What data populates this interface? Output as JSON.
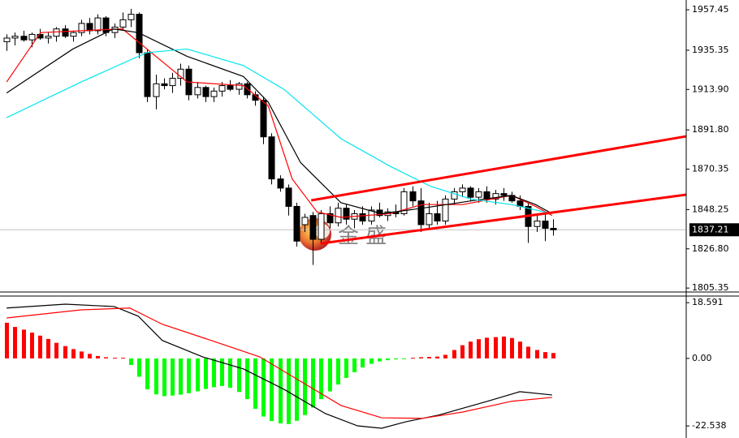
{
  "chart_data": [
    {
      "type": "candlestick",
      "xlim": [
        -0.8,
        82.1
      ],
      "ylim": [
        1803.2,
        1962.8
      ],
      "yticks": [
        1957.45,
        1935.35,
        {
          "value": 1913.9,
          "label": "1913.90"
        },
        {
          "value": 1891.8,
          "label": "1891.80"
        },
        1870.35,
        1848.25,
        {
          "value": 1826.8,
          "label": "1826.80"
        },
        1805.35
      ],
      "last_price": 1837.21,
      "watermark": "金 盛",
      "up_color": "#ffffff",
      "down_color": "#000000",
      "outline_color": "#000000",
      "ohlc": [
        [
          1940,
          1944,
          1935,
          1942
        ],
        [
          1942,
          1945,
          1938,
          1943
        ],
        [
          1943,
          1946,
          1940,
          1941
        ],
        [
          1941,
          1945,
          1937,
          1944
        ],
        [
          1944,
          1947,
          1941,
          1942
        ],
        [
          1942,
          1945,
          1939,
          1943
        ],
        [
          1943,
          1948,
          1940,
          1947
        ],
        [
          1947,
          1949,
          1942,
          1943
        ],
        [
          1943,
          1946,
          1940,
          1945
        ],
        [
          1945,
          1952,
          1943,
          1950
        ],
        [
          1950,
          1953,
          1944,
          1946
        ],
        [
          1946,
          1955,
          1944,
          1953
        ],
        [
          1953,
          1954,
          1943,
          1945
        ],
        [
          1945,
          1950,
          1942,
          1948
        ],
        [
          1948,
          1956,
          1946,
          1952
        ],
        [
          1952,
          1958,
          1948,
          1955
        ],
        [
          1955,
          1956,
          1931,
          1934
        ],
        [
          1934,
          1936,
          1907,
          1910
        ],
        [
          1910,
          1922,
          1903,
          1917
        ],
        [
          1917,
          1920,
          1914,
          1916
        ],
        [
          1916,
          1923,
          1912,
          1920
        ],
        [
          1920,
          1928,
          1916,
          1925
        ],
        [
          1925,
          1927,
          1908,
          1911
        ],
        [
          1911,
          1918,
          1909,
          1915
        ],
        [
          1915,
          1916,
          1907,
          1910
        ],
        [
          1910,
          1915,
          1907,
          1913
        ],
        [
          1913,
          1918,
          1910,
          1916
        ],
        [
          1916,
          1919,
          1913,
          1914
        ],
        [
          1914,
          1918,
          1911,
          1917
        ],
        [
          1917,
          1918,
          1909,
          1911
        ],
        [
          1911,
          1913,
          1905,
          1908
        ],
        [
          1908,
          1910,
          1884,
          1888
        ],
        [
          1888,
          1890,
          1862,
          1865
        ],
        [
          1865,
          1867,
          1858,
          1860
        ],
        [
          1860,
          1862,
          1845,
          1850
        ],
        [
          1850,
          1852,
          1828,
          1831
        ],
        [
          1840,
          1846,
          1836,
          1844
        ],
        [
          1845,
          1847,
          1818,
          1832
        ],
        [
          1832,
          1848,
          1830,
          1846
        ],
        [
          1846,
          1850,
          1838,
          1841
        ],
        [
          1841,
          1852,
          1839,
          1849
        ],
        [
          1849,
          1851,
          1840,
          1843
        ],
        [
          1843,
          1848,
          1838,
          1846
        ],
        [
          1846,
          1850,
          1840,
          1842
        ],
        [
          1842,
          1850,
          1840,
          1848
        ],
        [
          1848,
          1852,
          1844,
          1845
        ],
        [
          1845,
          1849,
          1842,
          1847
        ],
        [
          1847,
          1851,
          1844,
          1846
        ],
        [
          1846,
          1860,
          1845,
          1858
        ],
        [
          1858,
          1861,
          1850,
          1853
        ],
        [
          1853,
          1860,
          1836,
          1840
        ],
        [
          1840,
          1852,
          1838,
          1846
        ],
        [
          1846,
          1853,
          1840,
          1842
        ],
        [
          1842,
          1856,
          1840,
          1854
        ],
        [
          1854,
          1860,
          1851,
          1858
        ],
        [
          1858,
          1862,
          1855,
          1860
        ],
        [
          1860,
          1861,
          1853,
          1855
        ],
        [
          1855,
          1860,
          1852,
          1858
        ],
        [
          1858,
          1861,
          1852,
          1854
        ],
        [
          1854,
          1859,
          1851,
          1857
        ],
        [
          1857,
          1860,
          1853,
          1856
        ],
        [
          1856,
          1858,
          1852,
          1853
        ],
        [
          1853,
          1856,
          1848,
          1850
        ],
        [
          1850,
          1852,
          1830,
          1839
        ],
        [
          1839,
          1845,
          1836,
          1842
        ],
        [
          1842,
          1846,
          1831,
          1838
        ],
        [
          1838,
          1843,
          1834,
          1837.21
        ]
      ],
      "lines": [
        {
          "color": "#ff0000",
          "x": [
            0,
            4.1,
            14,
            21.8,
            28.6,
            31.6,
            34.5,
            37.5,
            40.4,
            46.3,
            50.2,
            55.1,
            61,
            63.9,
            65.9
          ],
          "values": [
            1918,
            1945,
            1947,
            1918,
            1916,
            1905,
            1865,
            1847,
            1844,
            1846,
            1851,
            1851,
            1856,
            1850,
            1845
          ]
        },
        {
          "color": "#000000",
          "x": [
            0,
            8,
            12.9,
            15.9,
            21.8,
            28.6,
            31.6,
            35.5,
            40.4,
            45.3,
            50.2,
            56.1,
            61,
            63.9,
            65.9
          ],
          "values": [
            1912,
            1936,
            1947,
            1945,
            1932,
            1921,
            1907,
            1874,
            1852,
            1846,
            1849,
            1853,
            1856,
            1851,
            1846
          ]
        },
        {
          "color": "#00e5ee",
          "x": [
            0,
            9,
            16.9,
            21.8,
            28.6,
            33.5,
            40.4,
            46.3,
            51.2,
            56.1,
            61,
            65.9
          ],
          "values": [
            1898.5,
            1918,
            1934,
            1936,
            1927,
            1914,
            1887,
            1872,
            1861,
            1854,
            1851,
            1846
          ]
        }
      ],
      "trendlines": [
        {
          "color": "#ff0000",
          "x": [
            36.8,
            82.1
          ],
          "values": [
            1853.3,
            1888.3
          ]
        },
        {
          "color": "#ff0000",
          "x": [
            37.9,
            82.1
          ],
          "values": [
            1829.7,
            1856.4
          ]
        }
      ]
    },
    {
      "type": "bar",
      "xlim": [
        -0.8,
        82.1
      ],
      "ylim": [
        -25.2,
        20.8
      ],
      "yticks": [
        18.591,
        {
          "value": 0,
          "label": "0.00"
        },
        -22.538
      ],
      "up_color": "#ff0000",
      "down_color": "#00ff00",
      "values": [
        11.9,
        10.5,
        9.6,
        8.6,
        7.6,
        6.5,
        5.2,
        4.1,
        3.1,
        2.3,
        1.5,
        0.8,
        0.4,
        0.2,
        0.2,
        -2.2,
        -6.1,
        -10.3,
        -12.0,
        -12.6,
        -12.4,
        -12.1,
        -11.6,
        -11.0,
        -10.2,
        -9.6,
        -9.2,
        -9.8,
        -11.2,
        -13.6,
        -16.8,
        -19.4,
        -20.9,
        -21.7,
        -21.9,
        -20.8,
        -18.9,
        -16.4,
        -13.6,
        -11.0,
        -8.7,
        -6.5,
        -4.6,
        -3.0,
        -1.8,
        -1.0,
        -0.6,
        -0.3,
        -0.2,
        0.2,
        0.4,
        0.5,
        0.6,
        1.2,
        2.8,
        4.4,
        5.6,
        6.4,
        6.9,
        7.1,
        7.3,
        6.8,
        5.6,
        3.9,
        2.8,
        2.1,
        1.8
      ],
      "lines": [
        {
          "color": "#000000",
          "x": [
            0,
            7.1,
            13,
            15.9,
            18.8,
            23.7,
            28.6,
            33.5,
            38.5,
            42.4,
            45.3,
            48.3,
            52.2,
            58.1,
            62,
            65.9
          ],
          "values": [
            16.8,
            18.1,
            17.3,
            14.1,
            6.0,
            0.5,
            -3.5,
            -10.3,
            -18.4,
            -22.5,
            -23.3,
            -21.1,
            -18.9,
            -14.3,
            -11.1,
            -12.2
          ]
        },
        {
          "color": "#ff0000",
          "x": [
            0,
            9,
            14.9,
            18.8,
            24.7,
            30.6,
            35.5,
            40.4,
            45.3,
            50.2,
            55.1,
            61,
            65.9
          ],
          "values": [
            13.5,
            16.2,
            16.8,
            11.4,
            6.0,
            0.5,
            -7.6,
            -15.7,
            -19.8,
            -20.0,
            -17.9,
            -14.3,
            -13.0
          ]
        }
      ]
    }
  ]
}
